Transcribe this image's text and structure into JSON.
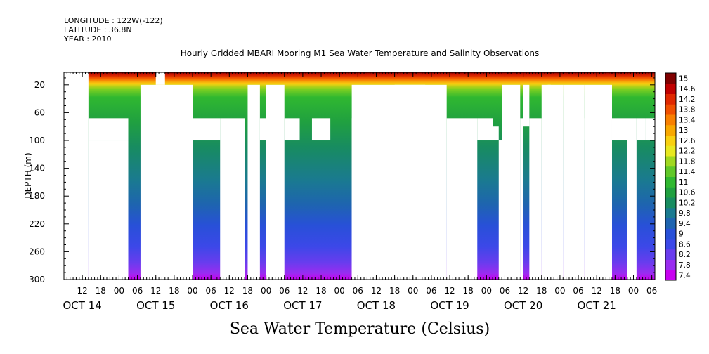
{
  "header": {
    "longitude": "LONGITUDE : 122W(-122)",
    "latitude": "LATITUDE : 36.8N",
    "year": "YEAR : 2010"
  },
  "chart_data": {
    "type": "heatmap",
    "title": "Hourly Gridded MBARI Mooring M1 Sea Water Temperature and Salinity Observations",
    "xlabel": "Sea Water Temperature (Celsius)",
    "ylabel": "DEPTH (m)",
    "x_hour_ticks": [
      "12",
      "18",
      "00",
      "06",
      "12",
      "18",
      "00",
      "06",
      "12",
      "18",
      "00",
      "06",
      "12",
      "18",
      "00",
      "06",
      "12",
      "18",
      "00",
      "06",
      "12",
      "18",
      "00",
      "06",
      "12",
      "18",
      "00",
      "06",
      "12",
      "18",
      "00",
      "06"
    ],
    "x_date_labels": [
      "OCT 14",
      "OCT 15",
      "OCT 16",
      "OCT 17",
      "OCT 18",
      "OCT 19",
      "OCT 20",
      "OCT 21"
    ],
    "x_range_hours_from_oct14_00": [
      6,
      199
    ],
    "y_ticks": [
      20,
      60,
      100,
      140,
      180,
      220,
      260,
      300
    ],
    "ylim": [
      300,
      2
    ],
    "colorbar": {
      "levels": [
        7.4,
        7.8,
        8.2,
        8.6,
        9,
        9.4,
        9.8,
        10.2,
        10.6,
        11,
        11.4,
        11.8,
        12.2,
        12.6,
        13,
        13.4,
        13.8,
        14.2,
        14.6,
        15
      ],
      "labels": [
        "7.4",
        "7.8",
        "8.2",
        "8.6",
        "9",
        "9.4",
        "9.8",
        "10.2",
        "10.6",
        "11",
        "11.4",
        "11.8",
        "12.2",
        "12.6",
        "13",
        "13.4",
        "13.8",
        "14.2",
        "14.6",
        "15"
      ],
      "colors": [
        "#c800f0",
        "#9a2cf0",
        "#6a3cee",
        "#3c48e8",
        "#2850d8",
        "#1e64b0",
        "#1a7a90",
        "#188c60",
        "#20a040",
        "#30b830",
        "#60c828",
        "#a0d820",
        "#e8e820",
        "#f8d010",
        "#f8a800",
        "#f88000",
        "#f05000",
        "#e02800",
        "#c00000",
        "#800000"
      ]
    },
    "gaps": [
      {
        "x0": 6,
        "x1": 14,
        "depth0": 2,
        "depth1": 300
      },
      {
        "x0": 14,
        "x1": 27,
        "depth0": 68,
        "depth1": 100
      },
      {
        "x0": 14,
        "x1": 27,
        "depth0": 100,
        "depth1": 300
      },
      {
        "x0": 31,
        "x1": 48,
        "depth0": 20,
        "depth1": 300
      },
      {
        "x0": 36,
        "x1": 39,
        "depth0": 2,
        "depth1": 20
      },
      {
        "x0": 48,
        "x1": 57,
        "depth0": 68,
        "depth1": 100
      },
      {
        "x0": 57,
        "x1": 65,
        "depth0": 68,
        "depth1": 300
      },
      {
        "x0": 66,
        "x1": 70,
        "depth0": 20,
        "depth1": 300
      },
      {
        "x0": 70,
        "x1": 72,
        "depth0": 68,
        "depth1": 100
      },
      {
        "x0": 72,
        "x1": 78,
        "depth0": 20,
        "depth1": 300
      },
      {
        "x0": 78,
        "x1": 83,
        "depth0": 68,
        "depth1": 100
      },
      {
        "x0": 87,
        "x1": 93,
        "depth0": 68,
        "depth1": 100
      },
      {
        "x0": 100,
        "x1": 131,
        "depth0": 20,
        "depth1": 300
      },
      {
        "x0": 100,
        "x1": 113,
        "depth0": 68,
        "depth1": 300
      },
      {
        "x0": 114,
        "x1": 124,
        "depth0": 20,
        "depth1": 300
      },
      {
        "x0": 131,
        "x1": 141,
        "depth0": 68,
        "depth1": 300
      },
      {
        "x0": 141,
        "x1": 146,
        "depth0": 68,
        "depth1": 100
      },
      {
        "x0": 146,
        "x1": 148,
        "depth0": 80,
        "depth1": 100
      },
      {
        "x0": 148,
        "x1": 149,
        "depth0": 100,
        "depth1": 300
      },
      {
        "x0": 149,
        "x1": 155,
        "depth0": 20,
        "depth1": 300
      },
      {
        "x0": 155,
        "x1": 156,
        "depth0": 68,
        "depth1": 300
      },
      {
        "x0": 156,
        "x1": 158,
        "depth0": 20,
        "depth1": 80
      },
      {
        "x0": 158,
        "x1": 162,
        "depth0": 68,
        "depth1": 300
      },
      {
        "x0": 162,
        "x1": 169,
        "depth0": 20,
        "depth1": 300
      },
      {
        "x0": 164,
        "x1": 165,
        "depth0": 20,
        "depth1": 60
      },
      {
        "x0": 169,
        "x1": 176,
        "depth0": 20,
        "depth1": 300
      },
      {
        "x0": 176,
        "x1": 181,
        "depth0": 68,
        "depth1": 100
      },
      {
        "x0": 176,
        "x1": 185,
        "depth0": 20,
        "depth1": 300
      },
      {
        "x0": 185,
        "x1": 190,
        "depth0": 68,
        "depth1": 100
      },
      {
        "x0": 190,
        "x1": 193,
        "depth0": 68,
        "depth1": 300
      },
      {
        "x0": 193,
        "x1": 196,
        "depth0": 68,
        "depth1": 100
      },
      {
        "x0": 196,
        "x1": 199,
        "depth0": 68,
        "depth1": 100
      }
    ]
  }
}
